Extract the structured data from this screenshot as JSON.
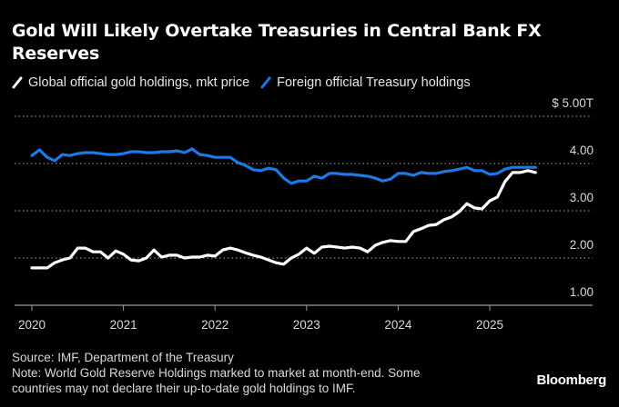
{
  "header": {
    "title": "Gold Will Likely Overtake Treasuries in Central Bank FX Reserves"
  },
  "footer": {
    "source": "Source: IMF, Department of the Treasury",
    "note_line1": "Note: World Gold Reserve Holdings marked to market at month-end. Some",
    "note_line2": "countries may not declare their up-to-date gold holdings to IMF.",
    "brand": "Bloomberg"
  },
  "chart_data": {
    "type": "line",
    "title": "Gold Will Likely Overtake Treasuries in Central Bank FX Reserves",
    "xlabel": "",
    "ylabel": "",
    "x_start": "2020-01",
    "x_frequency": "monthly",
    "x_ticks": [
      "2020",
      "2021",
      "2022",
      "2023",
      "2024",
      "2025"
    ],
    "y_ticks": [
      1.0,
      2.0,
      3.0,
      4.0,
      5.0
    ],
    "y_tick_labels": [
      "1.00",
      "2.00",
      "3.00",
      "4.00",
      "$ 5.00T"
    ],
    "ylim": [
      1.0,
      5.0
    ],
    "xlim": [
      "2019-10",
      "2025-12"
    ],
    "grid": "horizontal-dotted",
    "legend_position": "top-left",
    "series": [
      {
        "name": "Global official gold holdings, mkt price",
        "color": "#ffffff",
        "values": [
          1.79,
          1.79,
          1.79,
          1.9,
          1.96,
          2.0,
          2.21,
          2.21,
          2.13,
          2.13,
          2.0,
          2.15,
          2.08,
          1.96,
          1.94,
          2.0,
          2.17,
          2.02,
          2.06,
          2.06,
          2.0,
          2.02,
          2.02,
          2.06,
          2.04,
          2.17,
          2.21,
          2.17,
          2.11,
          2.06,
          2.02,
          1.96,
          1.9,
          1.87,
          2.0,
          2.08,
          2.21,
          2.1,
          2.23,
          2.25,
          2.23,
          2.21,
          2.23,
          2.21,
          2.13,
          2.27,
          2.33,
          2.37,
          2.35,
          2.35,
          2.56,
          2.62,
          2.69,
          2.71,
          2.81,
          2.87,
          2.98,
          3.15,
          3.06,
          3.04,
          3.21,
          3.29,
          3.62,
          3.81,
          3.81,
          3.85,
          3.81
        ]
      },
      {
        "name": "Foreign official Treasury holdings",
        "color": "#1a7ae8",
        "values": [
          4.17,
          4.29,
          4.13,
          4.06,
          4.19,
          4.17,
          4.21,
          4.23,
          4.23,
          4.21,
          4.19,
          4.19,
          4.21,
          4.25,
          4.25,
          4.23,
          4.23,
          4.25,
          4.25,
          4.27,
          4.23,
          4.31,
          4.19,
          4.17,
          4.13,
          4.13,
          4.13,
          4.02,
          3.96,
          3.87,
          3.85,
          3.9,
          3.87,
          3.69,
          3.58,
          3.63,
          3.63,
          3.73,
          3.69,
          3.79,
          3.79,
          3.77,
          3.77,
          3.75,
          3.73,
          3.69,
          3.63,
          3.67,
          3.79,
          3.79,
          3.75,
          3.81,
          3.79,
          3.79,
          3.83,
          3.85,
          3.88,
          3.92,
          3.85,
          3.85,
          3.77,
          3.79,
          3.88,
          3.92,
          3.92,
          3.92,
          3.92
        ]
      }
    ]
  }
}
